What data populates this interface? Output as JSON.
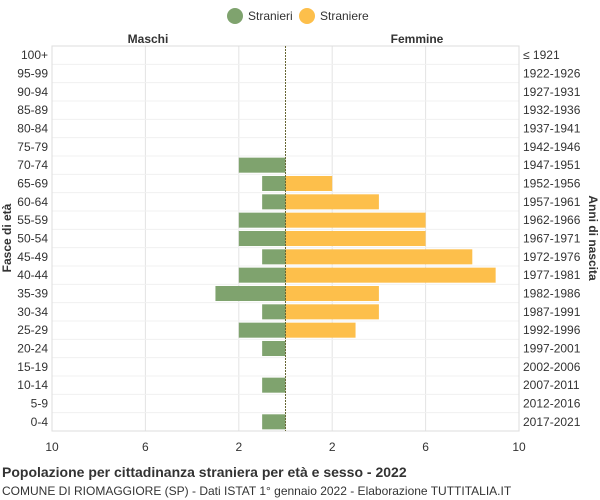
{
  "chart_data": {
    "type": "bar",
    "orientation": "horizontal-population-pyramid",
    "title": "Popolazione per cittadinanza straniera per età e sesso - 2022",
    "subtitle": "COMUNE DI RIOMAGGIORE (SP) - Dati ISTAT 1° gennaio 2022 - Elaborazione TUTTITALIA.IT",
    "left_header": "Maschi",
    "right_header": "Femmine",
    "ylabel_left": "Fasce di età",
    "ylabel_right": "Anni di nascita",
    "xlim": [
      -10,
      10
    ],
    "x_ticks": [
      {
        "value": -10,
        "label": "10"
      },
      {
        "value": -6,
        "label": "6"
      },
      {
        "value": -2,
        "label": "2"
      },
      {
        "value": 2,
        "label": "2"
      },
      {
        "value": 6,
        "label": "6"
      },
      {
        "value": 10,
        "label": "10"
      }
    ],
    "grid": true,
    "legend_position": "top-center",
    "categories": [
      "100+",
      "95-99",
      "90-94",
      "85-89",
      "80-84",
      "75-79",
      "70-74",
      "65-69",
      "60-64",
      "55-59",
      "50-54",
      "45-49",
      "40-44",
      "35-39",
      "30-34",
      "25-29",
      "20-24",
      "15-19",
      "10-14",
      "5-9",
      "0-4"
    ],
    "birth_years": [
      "≤ 1921",
      "1922-1926",
      "1927-1931",
      "1932-1936",
      "1937-1941",
      "1942-1946",
      "1947-1951",
      "1952-1956",
      "1957-1961",
      "1962-1966",
      "1967-1971",
      "1972-1976",
      "1977-1981",
      "1982-1986",
      "1987-1991",
      "1992-1996",
      "1997-2001",
      "2002-2006",
      "2007-2011",
      "2012-2016",
      "2017-2021"
    ],
    "series": [
      {
        "name": "Stranieri",
        "side": "left",
        "color": "#7fa36e",
        "values": [
          0,
          0,
          0,
          0,
          0,
          0,
          2,
          1,
          1,
          2,
          2,
          1,
          2,
          3,
          1,
          2,
          1,
          0,
          1,
          0,
          1
        ]
      },
      {
        "name": "Straniere",
        "side": "right",
        "color": "#fdbf4b",
        "values": [
          0,
          0,
          0,
          0,
          0,
          0,
          0,
          2,
          4,
          6,
          6,
          8,
          9,
          4,
          4,
          3,
          0,
          0,
          0,
          0,
          0
        ]
      }
    ]
  }
}
